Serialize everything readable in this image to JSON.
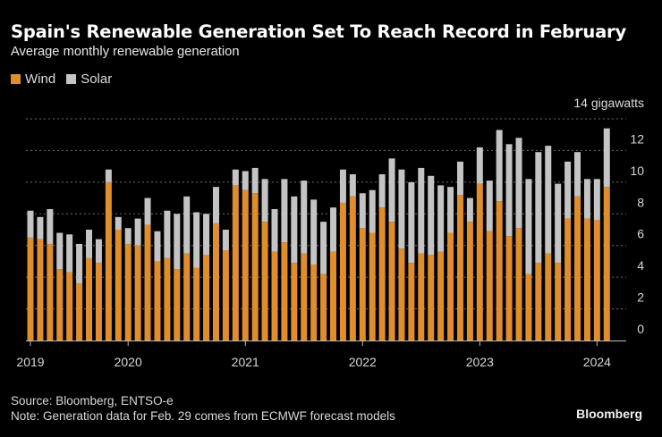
{
  "header": {
    "title": "Spain's Renewable Generation Set To Reach Record in February",
    "subtitle": "Average monthly renewable generation"
  },
  "legend": [
    {
      "label": "Wind",
      "color": "#e08e2b"
    },
    {
      "label": "Solar",
      "color": "#c4c4c4"
    }
  ],
  "footer": {
    "source": "Source: Bloomberg, ENTSO-e",
    "note": "Note: Generation data for Feb. 29 comes from ECMWF forecast models",
    "brand": "Bloomberg"
  },
  "chart_data": {
    "type": "bar",
    "stacked": true,
    "title": "Spain's Renewable Generation Set To Reach Record in February",
    "subtitle": "Average monthly renewable generation",
    "xlabel": "",
    "ylabel": "gigawatts",
    "unit_label": "14 gigawatts",
    "ylim": [
      0,
      14
    ],
    "yticks": [
      0,
      2,
      4,
      6,
      8,
      10,
      12
    ],
    "grid": true,
    "legend_position": "top-left",
    "x_tick_labels": [
      "2019",
      "2020",
      "2021",
      "2022",
      "2023",
      "2024"
    ],
    "x_tick_months": [
      "2019-03",
      "2020-01",
      "2021-01",
      "2022-01",
      "2023-01",
      "2024-01"
    ],
    "categories": [
      "2019-03",
      "2019-04",
      "2019-05",
      "2019-06",
      "2019-07",
      "2019-08",
      "2019-09",
      "2019-10",
      "2019-11",
      "2019-12",
      "2020-01",
      "2020-02",
      "2020-03",
      "2020-04",
      "2020-05",
      "2020-06",
      "2020-07",
      "2020-08",
      "2020-09",
      "2020-10",
      "2020-11",
      "2020-12",
      "2021-01",
      "2021-02",
      "2021-03",
      "2021-04",
      "2021-05",
      "2021-06",
      "2021-07",
      "2021-08",
      "2021-09",
      "2021-10",
      "2021-11",
      "2021-12",
      "2022-01",
      "2022-02",
      "2022-03",
      "2022-04",
      "2022-05",
      "2022-06",
      "2022-07",
      "2022-08",
      "2022-09",
      "2022-10",
      "2022-11",
      "2022-12",
      "2023-01",
      "2023-02",
      "2023-03",
      "2023-04",
      "2023-05",
      "2023-06",
      "2023-07",
      "2023-08",
      "2023-09",
      "2023-10",
      "2023-11",
      "2023-12",
      "2024-01",
      "2024-02"
    ],
    "series": [
      {
        "name": "Wind",
        "color": "#e08e2b",
        "values": [
          6.5,
          6.4,
          6.1,
          4.5,
          4.3,
          3.6,
          5.2,
          4.9,
          10.0,
          7.0,
          6.1,
          6.0,
          7.3,
          5.0,
          5.2,
          4.5,
          5.5,
          4.6,
          5.4,
          7.4,
          5.7,
          9.8,
          9.5,
          9.3,
          7.5,
          5.6,
          6.2,
          4.9,
          5.5,
          4.8,
          4.2,
          5.6,
          8.7,
          9.1,
          7.1,
          6.8,
          8.4,
          7.5,
          5.8,
          4.9,
          5.5,
          5.4,
          5.6,
          6.8,
          9.2,
          7.5,
          9.9,
          6.9,
          8.8,
          6.6,
          7.1,
          4.2,
          4.9,
          5.5,
          4.9,
          7.7,
          9.1,
          7.7,
          7.6,
          9.7
        ]
      },
      {
        "name": "Solar",
        "color": "#c4c4c4",
        "values": [
          1.7,
          1.4,
          2.2,
          2.3,
          2.4,
          2.5,
          1.8,
          1.5,
          0.8,
          0.8,
          1.0,
          1.7,
          1.7,
          1.9,
          3.0,
          3.5,
          3.6,
          3.5,
          2.6,
          2.3,
          1.3,
          1.0,
          1.2,
          1.6,
          2.7,
          2.7,
          4.0,
          4.2,
          4.6,
          4.1,
          3.3,
          2.8,
          2.1,
          1.4,
          2.2,
          2.7,
          2.1,
          4.0,
          5.0,
          5.1,
          5.4,
          5.0,
          4.2,
          2.9,
          2.1,
          1.5,
          2.3,
          3.2,
          4.5,
          5.8,
          5.7,
          6.0,
          7.0,
          6.8,
          5.0,
          3.6,
          2.8,
          2.5,
          2.6,
          3.7
        ]
      }
    ]
  }
}
